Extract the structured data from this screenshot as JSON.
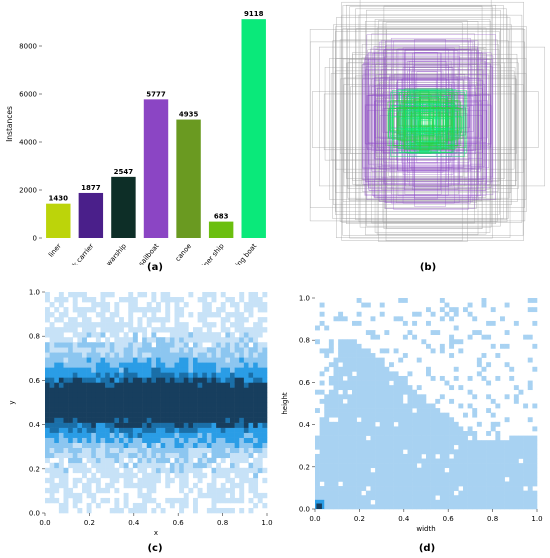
{
  "panels": {
    "a": "(a)",
    "b": "(b)",
    "c": "(c)",
    "d": "(d)"
  },
  "chart_data": [
    {
      "type": "bar",
      "panel": "(a)",
      "categories": [
        "liner",
        "bulk carrier",
        "warship",
        "sailboat",
        "canoe",
        "container ship",
        "fishing boat"
      ],
      "values": [
        1430,
        1877,
        2547,
        5777,
        4935,
        683,
        9118
      ],
      "colors": [
        "#bcd40a",
        "#4a1f8a",
        "#0d2e27",
        "#8b45c4",
        "#6a9a21",
        "#6bbf0f",
        "#0ae97a"
      ],
      "ylabel": "Instances",
      "ylim": [
        0,
        9500
      ],
      "yticks": [
        0,
        2000,
        4000,
        6000,
        8000
      ],
      "grid": false
    },
    {
      "type": "other",
      "panel": "(b)",
      "description_kind": "bounding-box overlay",
      "colors": [
        "#9a9a9a",
        "#8b45c4",
        "#0ae97a",
        "#2ecc40"
      ]
    },
    {
      "type": "heatmap",
      "panel": "(c)",
      "xlabel": "x",
      "ylabel": "y",
      "xlim": [
        0.0,
        1.0
      ],
      "ylim": [
        0.0,
        1.0
      ],
      "xticks": [
        "0.0",
        "0.2",
        "0.4",
        "0.6",
        "0.8",
        "1.0"
      ],
      "yticks": [
        "0.0",
        "0.2",
        "0.4",
        "0.6",
        "0.8",
        "1.0"
      ],
      "density_peak_y": 0.5,
      "colors": [
        "#c7e2f7",
        "#8cc6f0",
        "#2a9de6",
        "#1a6fa8",
        "#173e5e"
      ]
    },
    {
      "type": "heatmap",
      "panel": "(d)",
      "xlabel": "width",
      "ylabel": "height",
      "xlim": [
        0.0,
        1.0
      ],
      "ylim": [
        0.0,
        1.0
      ],
      "xticks": [
        "0.0",
        "0.2",
        "0.4",
        "0.6",
        "0.8",
        "1.0"
      ],
      "yticks": [
        "0.0",
        "0.2",
        "0.4",
        "0.6",
        "0.8",
        "1.0"
      ],
      "colors": [
        "#a8d2f2",
        "#2a9de6",
        "#173e5e"
      ]
    }
  ]
}
